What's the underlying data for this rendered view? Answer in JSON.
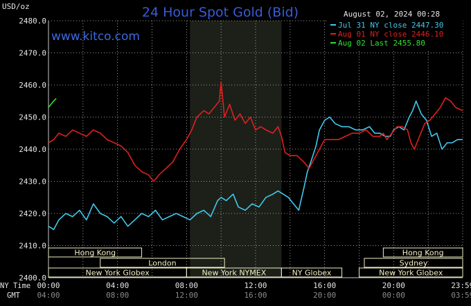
{
  "chart_data": {
    "type": "line",
    "title": "24 Hour Spot Gold (Bid)",
    "ylabel": "USD/oz",
    "timestamp": "August 02, 2024 00:28",
    "watermark": "www.kitco.com",
    "colors": {
      "background": "#000000",
      "grid": "#c8c8c8",
      "title": "#3a5ad8",
      "watermark": "#3a6ae0",
      "session_shade": "#1c2019",
      "session_box": "#f2f0c8"
    },
    "ylim": [
      2400,
      2480
    ],
    "yticks": [
      "2400.0",
      "2410.0",
      "2420.0",
      "2430.0",
      "2440.0",
      "2450.0",
      "2460.0",
      "2470.0",
      "2480.0"
    ],
    "xlim": [
      0,
      24
    ],
    "x_unit": "hours (NY time)",
    "x_row_labels": {
      "top": "NY Time",
      "bottom": "GMT"
    },
    "x_ticks_ny": [
      "00:00",
      "04:00",
      "08:00",
      "12:00",
      "16:00",
      "20:00",
      "23:59"
    ],
    "x_ticks_gmt": [
      "04:00",
      "08:00",
      "12:00",
      "16:00",
      "20:00",
      "00:00",
      "03:59"
    ],
    "legend": [
      {
        "label": "Jul 31 NY close 2447.30",
        "color": "#42c8ee"
      },
      {
        "label": "Aug 01 NY close 2446.10",
        "color": "#e02020"
      },
      {
        "label": "Aug 02 Last 2455.80",
        "color": "#30e030"
      }
    ],
    "sessions": [
      {
        "label": "Hong Kong",
        "row": 0,
        "start": 0,
        "end": 5.4
      },
      {
        "label": "Hong Kong",
        "row": 0,
        "start": 19.4,
        "end": 24
      },
      {
        "label": "London",
        "row": 1,
        "start": 3,
        "end": 10.2
      },
      {
        "label": "Sydney",
        "row": 1,
        "start": 18.3,
        "end": 24
      },
      {
        "label": "New York Globex",
        "row": 2,
        "start": 0,
        "end": 8
      },
      {
        "label": "New York NYMEX",
        "row": 2,
        "start": 8,
        "end": 13.5
      },
      {
        "label": "NY Globex",
        "row": 2,
        "start": 13.5,
        "end": 17
      },
      {
        "label": "New York Globex",
        "row": 2,
        "start": 18,
        "end": 24
      }
    ],
    "shade_range": [
      8.2,
      13.5
    ],
    "series": [
      {
        "name": "Jul 31 NY close 2447.30",
        "color": "#42c8ee",
        "x": [
          0,
          0.3,
          0.6,
          1,
          1.4,
          1.8,
          2.2,
          2.6,
          3,
          3.4,
          3.8,
          4.2,
          4.6,
          5,
          5.4,
          5.8,
          6.2,
          6.6,
          7,
          7.4,
          7.8,
          8.2,
          8.6,
          9,
          9.4,
          9.8,
          10,
          10.3,
          10.7,
          11,
          11.4,
          11.8,
          12.2,
          12.6,
          13,
          13.3,
          13.6,
          13.9,
          14.2,
          14.5,
          14.8,
          15,
          15.2,
          15.5,
          15.7,
          16,
          16.3,
          16.6,
          17,
          17.4,
          17.8,
          18.2,
          18.6,
          18.9,
          19.2,
          19.5,
          19.8,
          20,
          20.3,
          20.6,
          20.9,
          21.1,
          21.3,
          21.6,
          21.9,
          22.2,
          22.5,
          22.8,
          23.1,
          23.4,
          23.7,
          23.99
        ],
        "y": [
          2416,
          2415,
          2418,
          2420,
          2419,
          2421,
          2418,
          2423,
          2420,
          2419,
          2417,
          2419,
          2416,
          2418,
          2420,
          2419,
          2421,
          2418,
          2419,
          2420,
          2419,
          2418,
          2420,
          2421,
          2419,
          2424,
          2425,
          2424,
          2426,
          2422,
          2421,
          2423,
          2422,
          2425,
          2426,
          2427,
          2426,
          2425,
          2423,
          2421,
          2428,
          2433,
          2436,
          2441,
          2446,
          2449,
          2450,
          2448,
          2447,
          2447,
          2446,
          2446,
          2447,
          2445,
          2445,
          2444,
          2444,
          2446,
          2447,
          2446,
          2450,
          2452,
          2455,
          2451,
          2449,
          2444,
          2445,
          2440,
          2442,
          2442,
          2443,
          2443
        ]
      },
      {
        "name": "Aug 01 NY close 2446.10",
        "color": "#e02020",
        "x": [
          0,
          0.3,
          0.6,
          1,
          1.4,
          1.8,
          2.2,
          2.6,
          3,
          3.4,
          3.8,
          4.2,
          4.6,
          5,
          5.4,
          5.8,
          6.1,
          6.4,
          6.8,
          7.2,
          7.6,
          8,
          8.3,
          8.6,
          9,
          9.3,
          9.6,
          9.9,
          10,
          10.2,
          10.5,
          10.8,
          11.1,
          11.4,
          11.7,
          12,
          12.3,
          12.6,
          13,
          13.3,
          13.5,
          13.7,
          14,
          14.4,
          14.8,
          15.1,
          15.4,
          15.7,
          16,
          16.4,
          16.8,
          17.2,
          17.6,
          18,
          18.4,
          18.8,
          19.2,
          19.4,
          19.6,
          19.9,
          20.2,
          20.5,
          20.8,
          21,
          21.2,
          21.5,
          21.8,
          22.1,
          22.4,
          22.7,
          23,
          23.3,
          23.6,
          23.99
        ],
        "y": [
          2442,
          2443,
          2445,
          2444,
          2446,
          2445,
          2444,
          2446,
          2445,
          2443,
          2442,
          2441,
          2439,
          2435,
          2433,
          2432,
          2430,
          2432,
          2434,
          2436,
          2440,
          2443,
          2446,
          2450,
          2452,
          2451,
          2453,
          2455,
          2461,
          2450,
          2454,
          2449,
          2451,
          2448,
          2450,
          2446,
          2447,
          2446,
          2445,
          2447,
          2444,
          2439,
          2438,
          2438,
          2436,
          2434,
          2437,
          2440,
          2443,
          2443,
          2443,
          2444,
          2445,
          2445,
          2446,
          2444,
          2444,
          2445,
          2443,
          2445,
          2447,
          2447,
          2446,
          2442,
          2440,
          2444,
          2448,
          2449,
          2451,
          2453,
          2456,
          2455,
          2453,
          2452
        ]
      },
      {
        "name": "Aug 02 Last 2455.80",
        "color": "#30e030",
        "x": [
          0,
          0.15,
          0.3,
          0.45
        ],
        "y": [
          2453,
          2454,
          2455,
          2455.8
        ]
      }
    ]
  }
}
